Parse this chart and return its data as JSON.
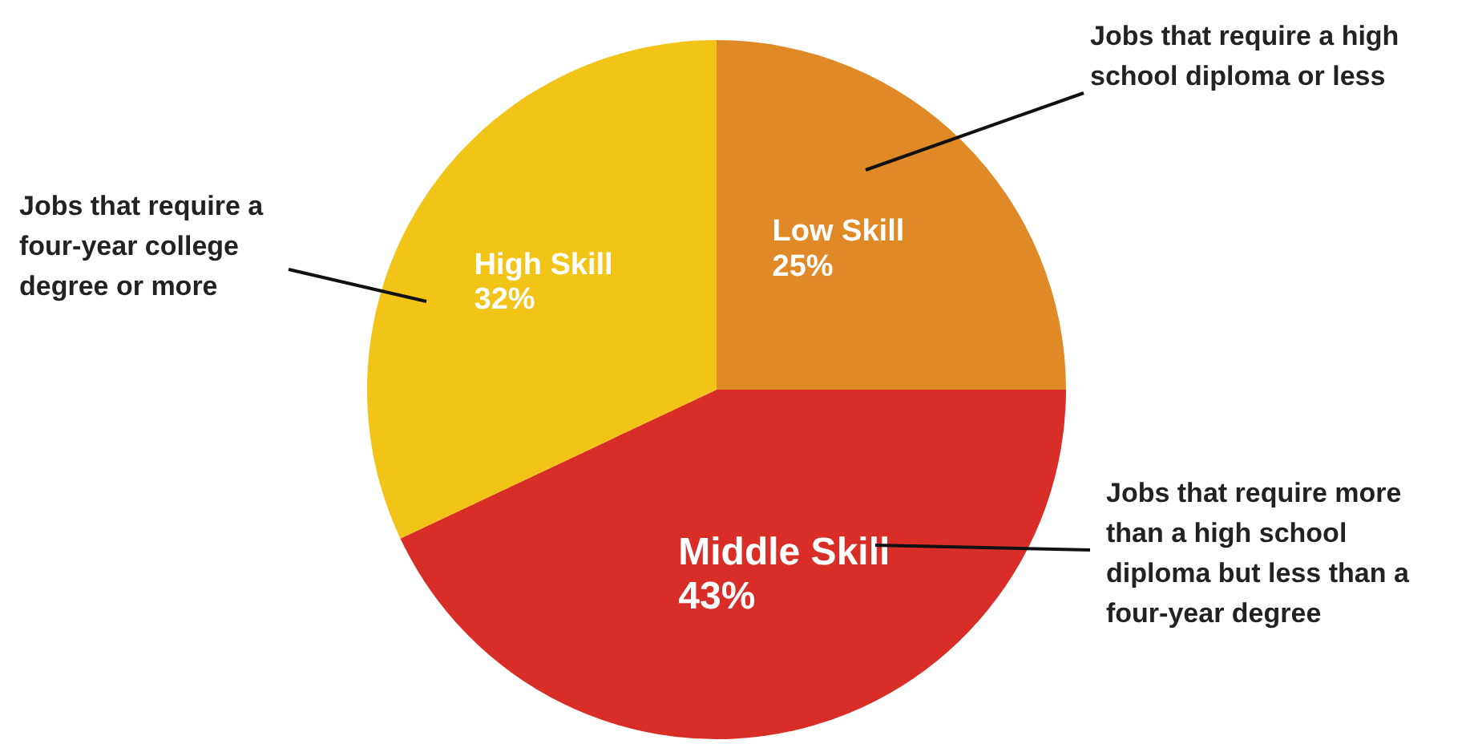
{
  "chart_data": {
    "type": "pie",
    "categories": [
      "Low Skill",
      "Middle Skill",
      "High Skill"
    ],
    "values": [
      25,
      43,
      32
    ],
    "value_labels": [
      "25%",
      "43%",
      "32%"
    ],
    "colors": [
      "#e08a27",
      "#d92e27",
      "#f2c418"
    ],
    "legend": false,
    "annotations": [
      "Jobs that require a high school diploma or less",
      "Jobs that require a four-year college degree or more",
      "Jobs that require more than a high school diploma but less than a four-year degree"
    ]
  }
}
